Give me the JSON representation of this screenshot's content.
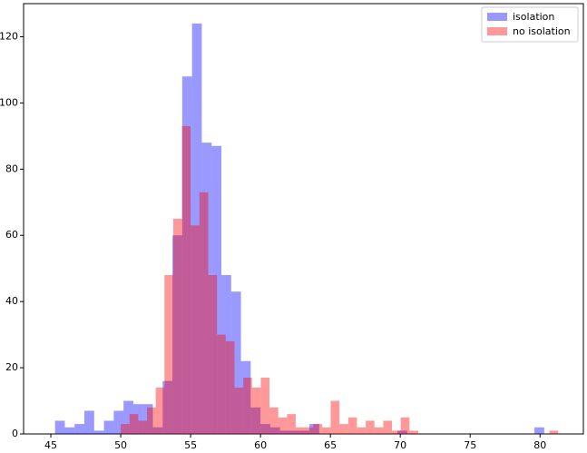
{
  "chart_data": {
    "type": "histogram",
    "xlim": [
      43.05,
      83.1
    ],
    "ylim": [
      0,
      130
    ],
    "xticks": [
      45,
      50,
      55,
      60,
      65,
      70,
      75,
      80
    ],
    "yticks": [
      0,
      20,
      40,
      60,
      80,
      100,
      120
    ],
    "legend": "upper right",
    "alpha": 0.4,
    "series": [
      {
        "name": "isolation",
        "color": "#0000ff",
        "bins": [
          45.3,
          46.0,
          46.7,
          47.4,
          48.1,
          48.8,
          49.5,
          50.2,
          50.9,
          51.6,
          52.3,
          53.0,
          53.7,
          54.4,
          55.1,
          55.8,
          56.5,
          57.2,
          57.9,
          58.6,
          59.3,
          60.0,
          60.7,
          61.4,
          62.1,
          62.8,
          63.5,
          64.2,
          64.9,
          65.6,
          66.3,
          67.0,
          67.7,
          68.4,
          69.1,
          69.8,
          70.5,
          71.2,
          71.9,
          72.6,
          73.3,
          74.0,
          74.7,
          75.4,
          76.1,
          76.8,
          77.5,
          78.2,
          78.9,
          79.6,
          80.3
        ],
        "values": [
          4,
          2,
          3,
          7,
          1,
          4,
          7,
          10,
          9,
          9,
          2,
          16,
          60,
          108,
          124,
          88,
          87,
          48,
          43,
          22,
          8,
          3,
          2,
          1,
          1,
          1,
          3,
          0,
          0,
          0,
          0,
          0,
          0,
          0,
          0,
          1,
          0,
          0,
          0,
          0,
          0,
          0,
          0,
          0,
          0,
          0,
          0,
          0,
          0,
          2
        ]
      },
      {
        "name": "no isolation",
        "color": "#ff0000",
        "bins": [
          50.0,
          50.63,
          51.25,
          51.88,
          52.5,
          53.13,
          53.76,
          54.38,
          55.0,
          55.63,
          56.26,
          56.89,
          57.51,
          58.14,
          58.77,
          59.39,
          60.02,
          60.64,
          61.27,
          61.9,
          62.52,
          63.15,
          63.77,
          64.4,
          65.02,
          65.65,
          66.28,
          66.9,
          67.53,
          68.15,
          68.78,
          69.41,
          70.03,
          70.66,
          71.28,
          71.91,
          72.54,
          73.16,
          73.79,
          74.41,
          75.04,
          75.67,
          76.29,
          76.92,
          77.54,
          78.17,
          78.8,
          79.42,
          80.05,
          80.67,
          81.3
        ],
        "values": [
          3,
          6,
          4,
          8,
          14,
          48,
          65,
          93,
          63,
          73,
          48,
          30,
          28,
          14,
          17,
          14,
          17,
          8,
          5,
          6,
          2,
          2,
          3,
          2,
          10,
          3,
          5,
          2,
          4,
          2,
          4,
          1,
          5,
          1,
          0,
          0,
          0,
          0,
          0,
          0,
          0,
          0,
          0,
          0,
          0,
          0,
          0,
          0,
          0,
          1
        ]
      }
    ]
  }
}
